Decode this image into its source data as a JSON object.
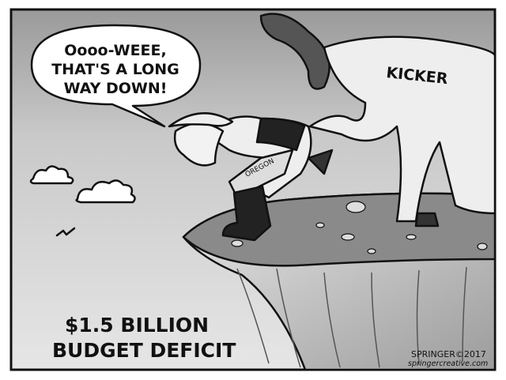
{
  "cartoon": {
    "speech_bubble": {
      "lines": [
        "Oooo-WEEE,",
        "THAT'S A LONG",
        "WAY DOWN!"
      ]
    },
    "horse_label": "KICKER",
    "figure_label": "OREGON",
    "caption": {
      "lines": [
        "$1.5 BILLION",
        "BUDGET DEFICIT"
      ]
    },
    "signature": "SPRINGER©2017",
    "website": "springercreative.com"
  }
}
